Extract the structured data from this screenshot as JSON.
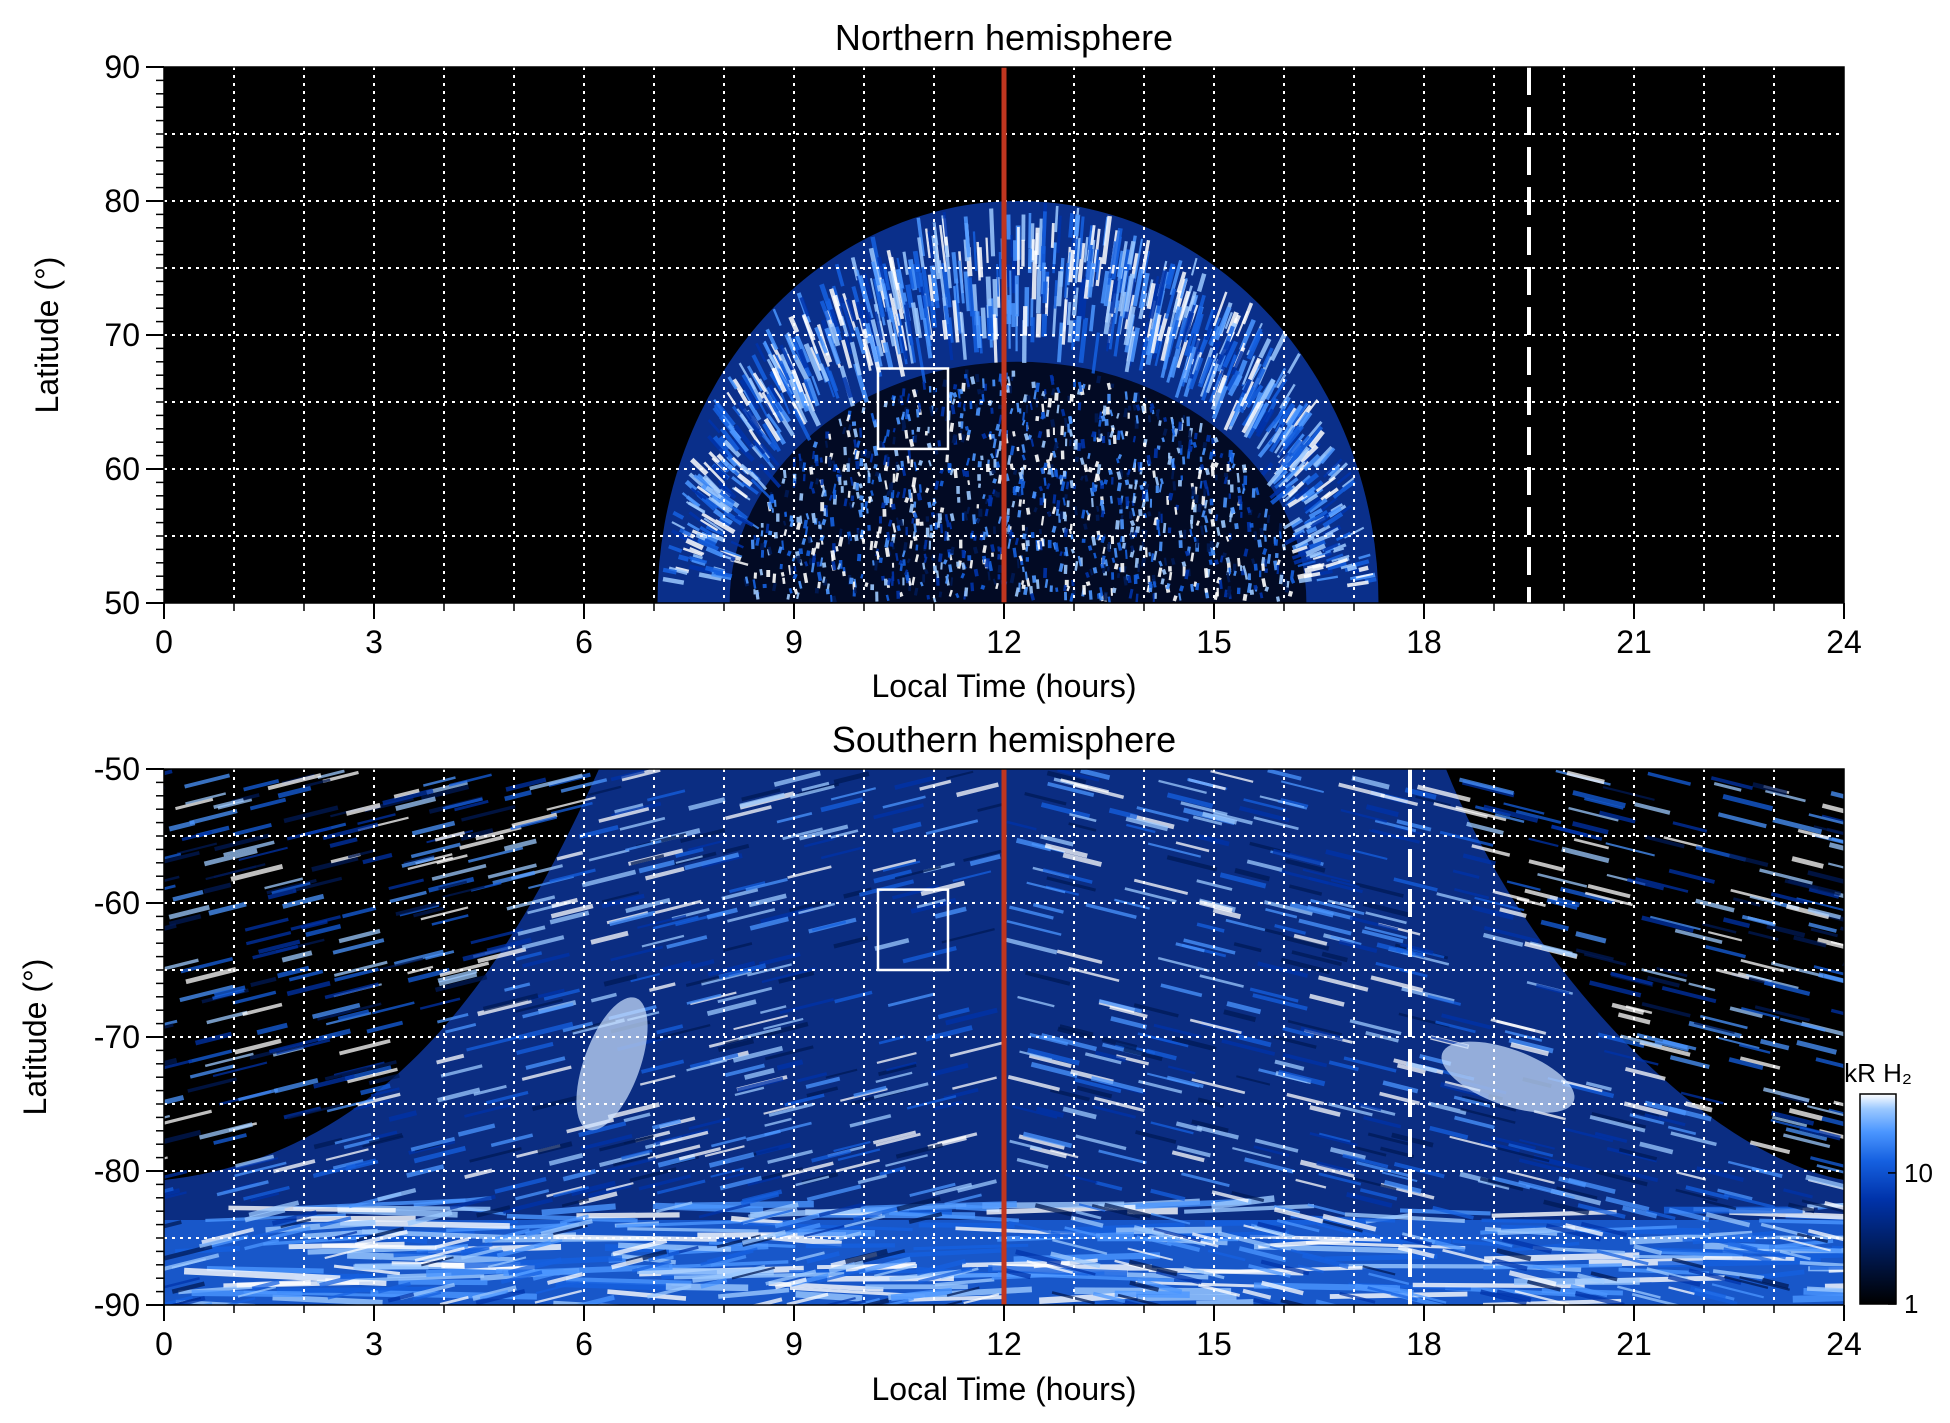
{
  "colors": {
    "background": "#000000",
    "grid": "#ffffff",
    "noon_line": "#c0361f",
    "marker": "#ffffff",
    "colormap": [
      "#000000",
      "#001a55",
      "#0033aa",
      "#1560e0",
      "#4b96ff",
      "#9cc9ff",
      "#ffffff"
    ]
  },
  "chart_data": [
    {
      "type": "heatmap",
      "title": "Northern hemisphere",
      "xlabel": "Local Time (hours)",
      "ylabel": "Latitude (°)",
      "xlim": [
        0,
        24
      ],
      "ylim": [
        50,
        90
      ],
      "x_ticks": [
        0,
        3,
        6,
        9,
        12,
        15,
        18,
        21,
        24
      ],
      "x_tick_labels": [
        "0",
        "3",
        "6",
        "9",
        "12",
        "15",
        "18",
        "21",
        "24"
      ],
      "y_ticks": [
        50,
        60,
        70,
        80,
        90
      ],
      "y_tick_labels": [
        "50",
        "60",
        "70",
        "80",
        "90"
      ],
      "grid": true,
      "grid_x_step": 1,
      "grid_y_step": 5,
      "emission_region": {
        "inner_oval_lat": 68,
        "outer_oval_lat": 80,
        "dawn_edge_lt": 7,
        "dusk_edge_lt": 17.3,
        "region_center_lt": 12.2
      },
      "noon_line_lt": 12,
      "dashed_line_lt": 19.5,
      "box": {
        "lt": [
          10.2,
          11.2
        ],
        "lat": [
          61.5,
          67.5
        ]
      }
    },
    {
      "type": "heatmap",
      "title": "Southern hemisphere",
      "xlabel": "Local Time (hours)",
      "ylabel": "Latitude (°)",
      "xlim": [
        0,
        24
      ],
      "ylim": [
        -90,
        -50
      ],
      "x_ticks": [
        0,
        3,
        6,
        9,
        12,
        15,
        18,
        21,
        24
      ],
      "x_tick_labels": [
        "0",
        "3",
        "6",
        "9",
        "12",
        "15",
        "18",
        "21",
        "24"
      ],
      "y_ticks": [
        -90,
        -80,
        -70,
        -60,
        -50
      ],
      "y_tick_labels": [
        "-90",
        "-80",
        "-70",
        "-60",
        "-50"
      ],
      "grid": true,
      "grid_x_step": 1,
      "grid_y_step": 5,
      "emission_region": {
        "dawn_edge_top_lt": 5.5,
        "dusk_edge_top_lt": 18.6,
        "bright_spots": [
          {
            "lt": 6.4,
            "lat": -72
          },
          {
            "lt": 19.2,
            "lat": -73
          }
        ]
      },
      "noon_line_lt": 12,
      "dashed_line_lt": 17.8,
      "box": {
        "lt": [
          10.2,
          11.2
        ],
        "lat": [
          -65,
          -59
        ]
      },
      "colorbar": {
        "label": "kR H₂",
        "scale": "log",
        "range": [
          1,
          40
        ],
        "tick_values": [
          1,
          10
        ],
        "tick_labels": [
          "1",
          "10"
        ]
      }
    }
  ]
}
